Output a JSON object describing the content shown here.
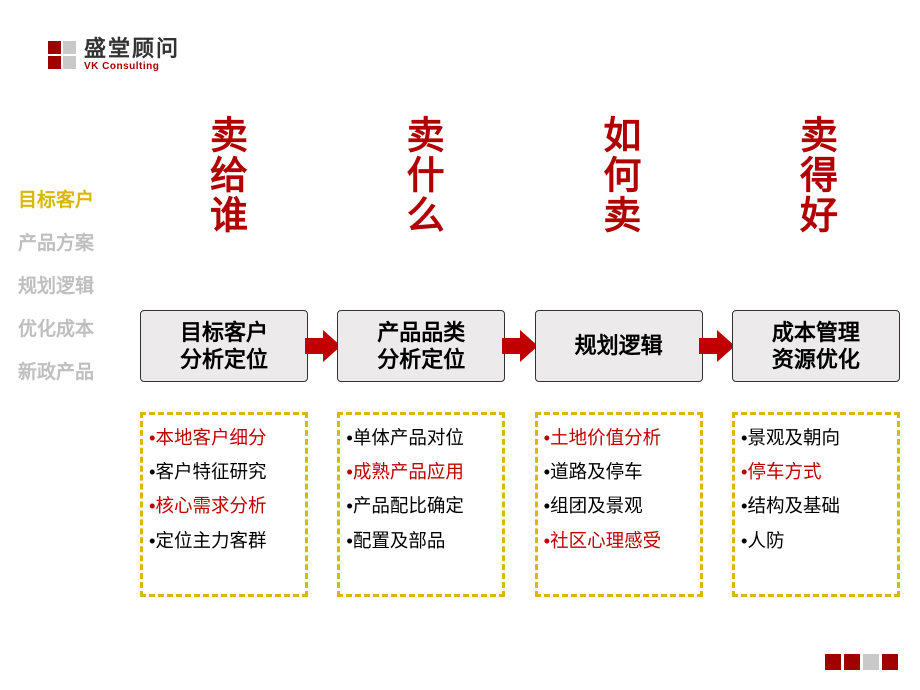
{
  "logo": {
    "cn": "盛堂顾问",
    "en": "VK Consulting",
    "squares": [
      "#a00000",
      "#c9c9c9",
      "#a00000",
      "#c9c9c9"
    ]
  },
  "sidebar": {
    "items": [
      {
        "label": "目标客户",
        "color": "#d6b900"
      },
      {
        "label": "产品方案",
        "color": "#bfbfbf"
      },
      {
        "label": "规划逻辑",
        "color": "#bfbfbf"
      },
      {
        "label": "优化成本",
        "color": "#bfbfbf"
      },
      {
        "label": "新政产品",
        "color": "#bfbfbf"
      }
    ]
  },
  "columns": [
    {
      "header": "卖给谁",
      "flow": "目标客户\n分析定位",
      "details": [
        {
          "text": "本地客户细分",
          "highlight": true
        },
        {
          "text": "客户特征研究",
          "highlight": false
        },
        {
          "text": "核心需求分析",
          "highlight": true
        },
        {
          "text": "定位主力客群",
          "highlight": false
        }
      ]
    },
    {
      "header": "卖什么",
      "flow": "产品品类\n分析定位",
      "details": [
        {
          "text": "单体产品对位",
          "highlight": false
        },
        {
          "text": "成熟产品应用",
          "highlight": true
        },
        {
          "text": "产品配比确定",
          "highlight": false
        },
        {
          "text": "配置及部品",
          "highlight": false
        }
      ]
    },
    {
      "header": "如何卖",
      "flow": "规划逻辑",
      "details": [
        {
          "text": "土地价值分析",
          "highlight": true
        },
        {
          "text": "道路及停车",
          "highlight": false
        },
        {
          "text": "组团及景观",
          "highlight": false
        },
        {
          "text": "社区心理感受",
          "highlight": true
        }
      ]
    },
    {
      "header": "卖得好",
      "flow": "成本管理\n资源优化",
      "details": [
        {
          "text": "景观及朝向",
          "highlight": false
        },
        {
          "text": "停车方式",
          "highlight": true
        },
        {
          "text": "结构及基础",
          "highlight": false
        },
        {
          "text": "人防",
          "highlight": false
        }
      ]
    }
  ],
  "style": {
    "arrow_color": "#c00000",
    "detail_border_color": "#d6b900",
    "header_color": "#b00000",
    "flow_box_bg": "#eceaea",
    "flow_box_border": "#333333"
  },
  "footer_squares": [
    "#a00000",
    "#a00000",
    "#c9c9c9",
    "#a00000"
  ]
}
